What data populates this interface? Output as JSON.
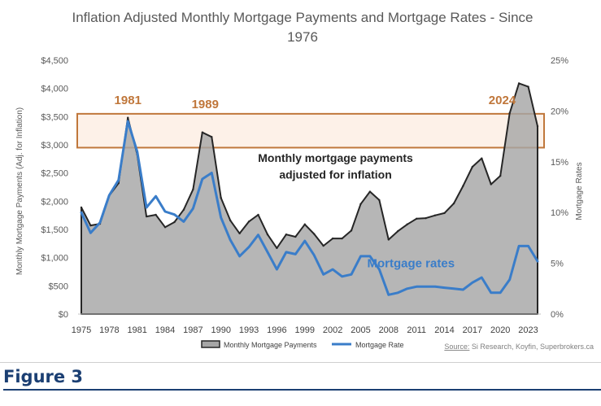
{
  "figure_label": "Figure 3",
  "colors": {
    "payments_fill": "#a6a6a6",
    "payments_line": "#262626",
    "rate_line": "#3a7dc9",
    "highlight_box": "#c0773b",
    "highlight_fill": "#fbe5d6",
    "year_labels": "#c0773b",
    "annotation_rates": "#3a7dc9",
    "annotation_payments": "#262626"
  },
  "chart_data": {
    "type": "area",
    "title": "Inflation Adjusted Monthly Mortgage Payments and Mortgage Rates - Since 1976",
    "title_lines": [
      "Inflation Adjusted Monthly Mortgage Payments and Mortgage Rates - Since",
      "1976"
    ],
    "ylabel": "Monthly Mortgage Payments (Adj. for Inflation)",
    "y2label": "Mortgage Rates",
    "xlim": [
      1975,
      2024
    ],
    "ylim": [
      0,
      4500
    ],
    "y2lim": [
      0,
      25
    ],
    "x_ticks": [
      1975,
      1978,
      1981,
      1984,
      1987,
      1990,
      1993,
      1996,
      1999,
      2002,
      2005,
      2008,
      2011,
      2014,
      2017,
      2020,
      2023
    ],
    "y_ticks": [
      {
        "value": 0,
        "label": "$0"
      },
      {
        "value": 500,
        "label": "$500"
      },
      {
        "value": 1000,
        "label": "$1,000"
      },
      {
        "value": 1500,
        "label": "$1,500"
      },
      {
        "value": 2000,
        "label": "$2,000"
      },
      {
        "value": 2500,
        "label": "$2,500"
      },
      {
        "value": 3000,
        "label": "$3,000"
      },
      {
        "value": 3500,
        "label": "$3,500"
      },
      {
        "value": 4000,
        "label": "$4,000"
      },
      {
        "value": 4500,
        "label": "$4,500"
      }
    ],
    "y2_ticks": [
      {
        "value": 0,
        "label": "0%"
      },
      {
        "value": 5,
        "label": "5%"
      },
      {
        "value": 10,
        "label": "10%"
      },
      {
        "value": 15,
        "label": "15%"
      },
      {
        "value": 20,
        "label": "20%"
      },
      {
        "value": 25,
        "label": "25%"
      }
    ],
    "series": [
      {
        "name": "Monthly Mortgage Payments",
        "axis": "left",
        "type": "area",
        "x": [
          1975,
          1976,
          1977,
          1978,
          1979,
          1980,
          1981,
          1982,
          1983,
          1984,
          1985,
          1986,
          1987,
          1988,
          1989,
          1990,
          1991,
          1992,
          1993,
          1994,
          1995,
          1996,
          1997,
          1998,
          1999,
          2000,
          2001,
          2002,
          2003,
          2004,
          2005,
          2006,
          2007,
          2008,
          2009,
          2010,
          2011,
          2012,
          2013,
          2014,
          2015,
          2016,
          2017,
          2018,
          2019,
          2020,
          2021,
          2022,
          2023,
          2024
        ],
        "values": [
          1890,
          1570,
          1600,
          2100,
          2320,
          3480,
          2830,
          1730,
          1760,
          1540,
          1630,
          1850,
          2210,
          3220,
          3140,
          2060,
          1660,
          1430,
          1640,
          1760,
          1410,
          1170,
          1410,
          1370,
          1590,
          1420,
          1210,
          1340,
          1340,
          1480,
          1950,
          2170,
          2020,
          1320,
          1470,
          1590,
          1690,
          1700,
          1750,
          1790,
          1960,
          2270,
          2610,
          2760,
          2300,
          2450,
          3560,
          4090,
          4030,
          3330
        ]
      },
      {
        "name": "Mortgage Rate",
        "axis": "right",
        "type": "line",
        "x": [
          1975,
          1976,
          1977,
          1978,
          1979,
          1980,
          1981,
          1982,
          1983,
          1984,
          1985,
          1986,
          1987,
          1988,
          1989,
          1990,
          1991,
          1992,
          1993,
          1994,
          1995,
          1996,
          1997,
          1998,
          1999,
          2000,
          2001,
          2002,
          2003,
          2004,
          2005,
          2006,
          2007,
          2008,
          2009,
          2010,
          2011,
          2012,
          2013,
          2014,
          2015,
          2016,
          2017,
          2018,
          2019,
          2020,
          2021,
          2022,
          2023,
          2024
        ],
        "values": [
          10.0,
          8.0,
          9.0,
          11.7,
          13.2,
          19.0,
          16.0,
          10.5,
          11.6,
          10.1,
          9.8,
          9.1,
          10.4,
          13.3,
          13.9,
          9.5,
          7.3,
          5.7,
          6.6,
          7.8,
          6.1,
          4.4,
          6.1,
          5.9,
          7.2,
          5.8,
          3.9,
          4.4,
          3.7,
          3.9,
          5.7,
          5.7,
          4.4,
          1.9,
          2.1,
          2.5,
          2.7,
          2.7,
          2.7,
          2.6,
          2.5,
          2.4,
          3.1,
          3.6,
          2.1,
          2.1,
          3.4,
          6.7,
          6.7,
          5.2
        ]
      }
    ],
    "legend": {
      "position": "bottom",
      "items": [
        {
          "label": "Monthly Mortgage Payments",
          "swatch": "area"
        },
        {
          "label": "Mortgage Rate",
          "swatch": "line"
        }
      ]
    },
    "highlight_band": {
      "y_min": 2950,
      "y_max": 3550
    },
    "annotations": [
      {
        "text": "1981",
        "x": 1980,
        "y": 3720,
        "style": "year"
      },
      {
        "text": "1989",
        "x": 1988.3,
        "y": 3650,
        "style": "year"
      },
      {
        "text": "2024",
        "x": 2020.2,
        "y": 3720,
        "style": "year"
      },
      {
        "text": "Monthly mortgage payments",
        "x": 2002.3,
        "y": 2700,
        "style": "payments"
      },
      {
        "text": "adjusted for inflation",
        "x": 2002.3,
        "y": 2400,
        "style": "payments"
      },
      {
        "text": "Mortgage rates",
        "x": 2010.4,
        "y": 830,
        "style": "rates"
      }
    ],
    "source_prefix": "Source:",
    "source_text": "Si Research, Koyfin, Superbrokers.ca",
    "grid": false
  }
}
